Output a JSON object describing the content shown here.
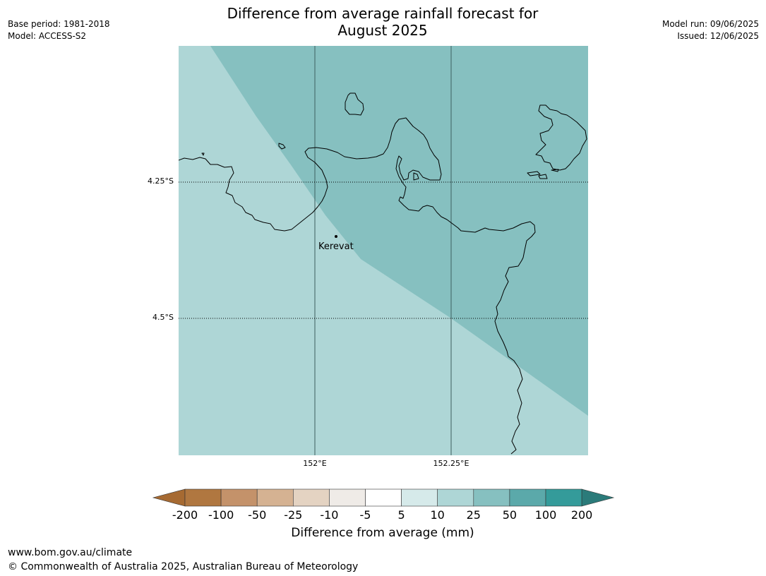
{
  "header": {
    "title_line1": "Difference from average rainfall forecast for",
    "title_line2": "August 2025",
    "base_period": "Base period: 1981-2018",
    "model": "Model: ACCESS-S2",
    "model_run": "Model run: 09/06/2025",
    "issued": "Issued: 12/06/2025"
  },
  "map": {
    "lat_labels": [
      "4.25°S",
      "4.5°S"
    ],
    "lon_labels": [
      "152°E",
      "152.25°E"
    ],
    "place": {
      "name": "Kerevat"
    },
    "regions": [
      {
        "category": "10 to 25",
        "color": "#aed6d6"
      },
      {
        "category": "25 to 50",
        "color": "#86c0c0"
      }
    ]
  },
  "colorbar": {
    "title": "Difference from average (mm)",
    "ticks": [
      "-200",
      "-100",
      "-50",
      "-25",
      "-10",
      "-5",
      "5",
      "10",
      "25",
      "50",
      "100",
      "200"
    ],
    "colors": [
      "#a66a32",
      "#b07740",
      "#c4926a",
      "#d5b292",
      "#e4d3c2",
      "#efebe7",
      "#ffffff",
      "#d6eaea",
      "#aed6d6",
      "#86c0c0",
      "#5ba9aa",
      "#349b9a",
      "#2b7b7a"
    ]
  },
  "footer": {
    "url": "www.bom.gov.au/climate",
    "copyright": "© Commonwealth of Australia 2025, Australian Bureau of Meteorology"
  }
}
